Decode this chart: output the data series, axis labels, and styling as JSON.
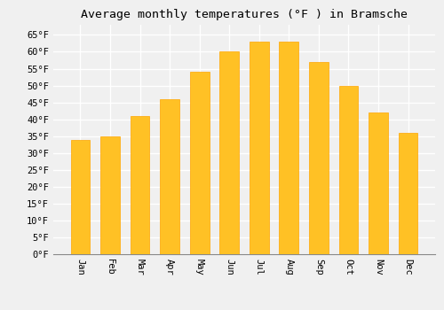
{
  "title": "Average monthly temperatures (°F ) in Bramsche",
  "months": [
    "Jan",
    "Feb",
    "Mar",
    "Apr",
    "May",
    "Jun",
    "Jul",
    "Aug",
    "Sep",
    "Oct",
    "Nov",
    "Dec"
  ],
  "values": [
    34,
    35,
    41,
    46,
    54,
    60,
    63,
    63,
    57,
    50,
    42,
    36
  ],
  "bar_color": "#FFC125",
  "bar_edge_color": "#FFA500",
  "ylim": [
    0,
    68
  ],
  "yticks": [
    0,
    5,
    10,
    15,
    20,
    25,
    30,
    35,
    40,
    45,
    50,
    55,
    60,
    65
  ],
  "background_color": "#f0f0f0",
  "grid_color": "#ffffff",
  "title_fontsize": 9.5,
  "tick_fontsize": 7.5,
  "font_family": "monospace",
  "bar_width": 0.65
}
